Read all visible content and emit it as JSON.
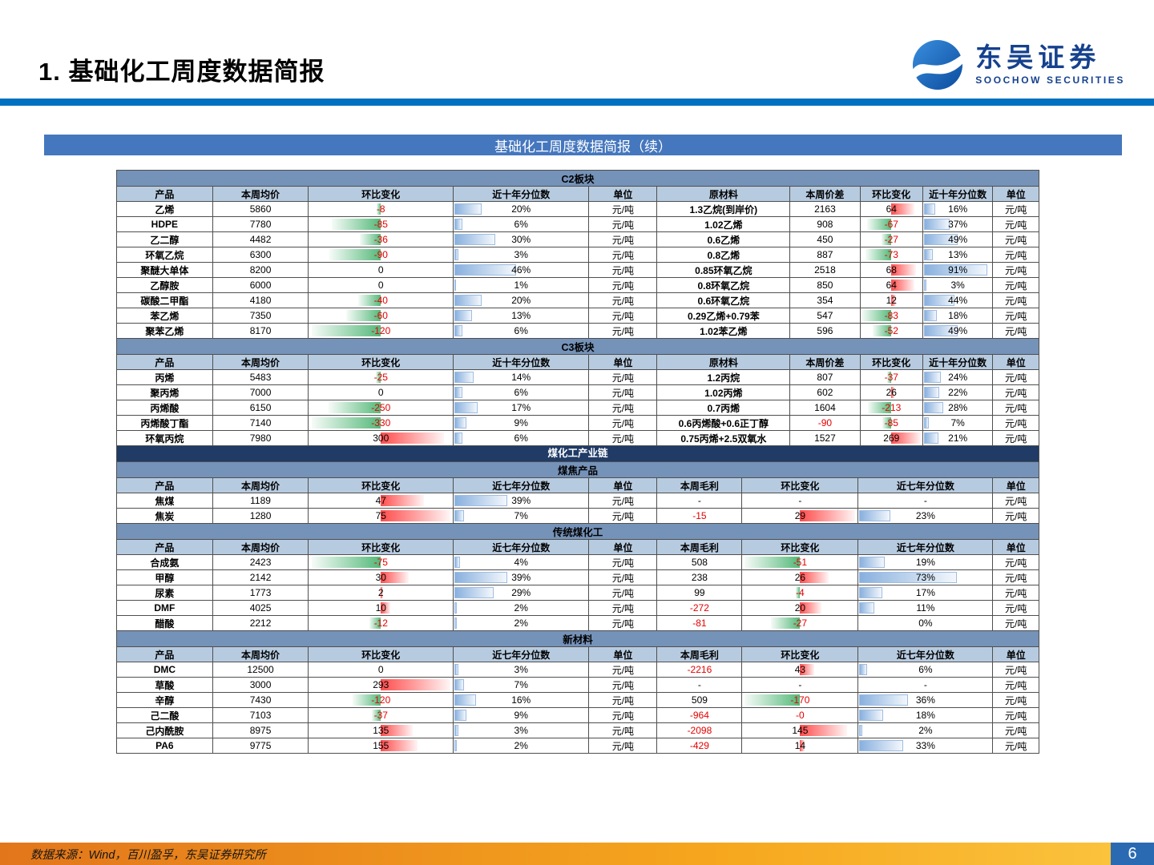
{
  "page": {
    "title": "1. 基础化工周度数据简报",
    "banner": "基础化工周度数据简报（续）",
    "footer_source": "数据来源：Wind，百川盈孚，东吴证券研究所",
    "page_number": "6"
  },
  "logo": {
    "cn": "东吴证券",
    "en": "SOOCHOW SECURITIES"
  },
  "colors": {
    "accent_rule": "#0070c0",
    "banner_blue": "#4577be",
    "section_blue": "#7592b8",
    "header_blue": "#b7cbe0",
    "dark_navy": "#1f3b66",
    "negative_bar_green": "#55b97a",
    "positive_bar_red": "#ff4b4b",
    "percentile_bar_blue": "#88b0de",
    "negative_text_red": "#e60000",
    "footer_orange": "#f6a71e",
    "page_block_blue": "#2a6ab3"
  },
  "table": {
    "sections": [
      {
        "id": "c2",
        "group": "spread",
        "title": "C2板块",
        "columns": [
          "产品",
          "本周均价",
          "环比变化",
          "近十年分位数",
          "单位",
          "原材料",
          "本周价差",
          "环比变化",
          "近十年分位数",
          "单位"
        ],
        "rows": [
          [
            "乙烯",
            "5860",
            "-8",
            "20%",
            "元/吨",
            "1.3乙烷(到岸价)",
            "2163",
            "64",
            "16%",
            "元/吨"
          ],
          [
            "HDPE",
            "7780",
            "-85",
            "6%",
            "元/吨",
            "1.02乙烯",
            "908",
            "-67",
            "37%",
            "元/吨"
          ],
          [
            "乙二醇",
            "4482",
            "-36",
            "30%",
            "元/吨",
            "0.6乙烯",
            "450",
            "-27",
            "49%",
            "元/吨"
          ],
          [
            "环氧乙烷",
            "6300",
            "-90",
            "3%",
            "元/吨",
            "0.8乙烯",
            "887",
            "-73",
            "13%",
            "元/吨"
          ],
          [
            "聚醚大单体",
            "8200",
            "0",
            "46%",
            "元/吨",
            "0.85环氧乙烷",
            "2518",
            "68",
            "91%",
            "元/吨"
          ],
          [
            "乙醇胺",
            "6000",
            "0",
            "1%",
            "元/吨",
            "0.8环氧乙烷",
            "850",
            "64",
            "3%",
            "元/吨"
          ],
          [
            "碳酸二甲酯",
            "4180",
            "-40",
            "20%",
            "元/吨",
            "0.6环氧乙烷",
            "354",
            "12",
            "44%",
            "元/吨"
          ],
          [
            "苯乙烯",
            "7350",
            "-60",
            "13%",
            "元/吨",
            "0.29乙烯+0.79苯",
            "547",
            "-83",
            "18%",
            "元/吨"
          ],
          [
            "聚苯乙烯",
            "8170",
            "-120",
            "6%",
            "元/吨",
            "1.02苯乙烯",
            "596",
            "-52",
            "49%",
            "元/吨"
          ]
        ]
      },
      {
        "id": "c3",
        "group": "spread",
        "title": "C3板块",
        "columns": [
          "产品",
          "本周均价",
          "环比变化",
          "近十年分位数",
          "单位",
          "原材料",
          "本周价差",
          "环比变化",
          "近十年分位数",
          "单位"
        ],
        "rows": [
          [
            "丙烯",
            "5483",
            "-25",
            "14%",
            "元/吨",
            "1.2丙烷",
            "807",
            "-37",
            "24%",
            "元/吨"
          ],
          [
            "聚丙烯",
            "7000",
            "0",
            "6%",
            "元/吨",
            "1.02丙烯",
            "602",
            "26",
            "22%",
            "元/吨"
          ],
          [
            "丙烯酸",
            "6150",
            "-250",
            "17%",
            "元/吨",
            "0.7丙烯",
            "1604",
            "-213",
            "28%",
            "元/吨"
          ],
          [
            "丙烯酸丁酯",
            "7140",
            "-330",
            "9%",
            "元/吨",
            "0.6丙烯酸+0.6正丁醇",
            "-90",
            "-85",
            "7%",
            "元/吨"
          ],
          [
            "环氧丙烷",
            "7980",
            "300",
            "6%",
            "元/吨",
            "0.75丙烯+2.5双氧水",
            "1527",
            "269",
            "21%",
            "元/吨"
          ]
        ]
      },
      {
        "id": "coal-chain",
        "type": "banner",
        "title": "煤化工产业链"
      },
      {
        "id": "coke",
        "group": "profit",
        "title": "煤焦产品",
        "columns": [
          "产品",
          "本周均价",
          "环比变化",
          "近七年分位数",
          "单位",
          "本周毛利",
          "环比变化",
          "近七年分位数",
          "单位"
        ],
        "rows": [
          [
            "焦煤",
            "1189",
            "47",
            "39%",
            "元/吨",
            "-",
            "-",
            "-",
            "元/吨"
          ],
          [
            "焦炭",
            "1280",
            "75",
            "7%",
            "元/吨",
            "-15",
            "29",
            "23%",
            "元/吨"
          ]
        ]
      },
      {
        "id": "trad-coal",
        "group": "profit",
        "title": "传统煤化工",
        "columns": [
          "产品",
          "本周均价",
          "环比变化",
          "近七年分位数",
          "单位",
          "本周毛利",
          "环比变化",
          "近七年分位数",
          "单位"
        ],
        "rows": [
          [
            "合成氨",
            "2423",
            "-75",
            "4%",
            "元/吨",
            "508",
            "-51",
            "19%",
            "元/吨"
          ],
          [
            "甲醇",
            "2142",
            "30",
            "39%",
            "元/吨",
            "238",
            "26",
            "73%",
            "元/吨"
          ],
          [
            "尿素",
            "1773",
            "2",
            "29%",
            "元/吨",
            "99",
            "-4",
            "17%",
            "元/吨"
          ],
          [
            "DMF",
            "4025",
            "10",
            "2%",
            "元/吨",
            "-272",
            "20",
            "11%",
            "元/吨"
          ],
          [
            "醋酸",
            "2212",
            "-12",
            "2%",
            "元/吨",
            "-81",
            "-27",
            "0%",
            "元/吨"
          ]
        ]
      },
      {
        "id": "new-materials",
        "group": "profit",
        "title": "新材料",
        "columns": [
          "产品",
          "本周均价",
          "环比变化",
          "近七年分位数",
          "单位",
          "本周毛利",
          "环比变化",
          "近七年分位数",
          "单位"
        ],
        "rows": [
          [
            "DMC",
            "12500",
            "0",
            "3%",
            "元/吨",
            "-2216",
            "43",
            "6%",
            "元/吨"
          ],
          [
            "草酸",
            "3000",
            "293",
            "7%",
            "元/吨",
            "-",
            "-",
            "-",
            "元/吨"
          ],
          [
            "辛醇",
            "7430",
            "-120",
            "16%",
            "元/吨",
            "509",
            "-170",
            "36%",
            "元/吨"
          ],
          [
            "己二酸",
            "7103",
            "-37",
            "9%",
            "元/吨",
            "-964",
            "-0",
            "18%",
            "元/吨"
          ],
          [
            "己内酰胺",
            "8975",
            "135",
            "3%",
            "元/吨",
            "-2098",
            "145",
            "2%",
            "元/吨"
          ],
          [
            "PA6",
            "9775",
            "155",
            "2%",
            "元/吨",
            "-429",
            "14",
            "33%",
            "元/吨"
          ]
        ]
      }
    ]
  }
}
